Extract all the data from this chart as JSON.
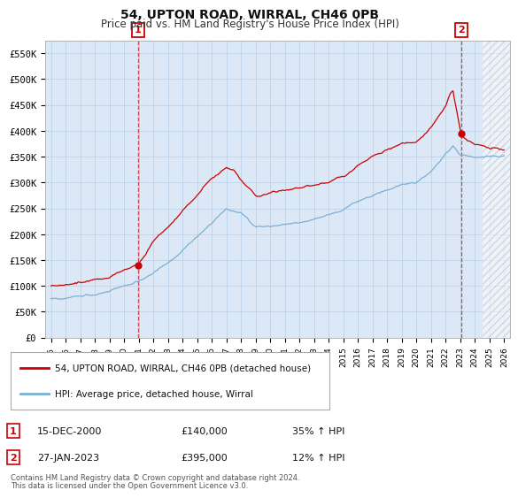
{
  "title": "54, UPTON ROAD, WIRRAL, CH46 0PB",
  "subtitle": "Price paid vs. HM Land Registry's House Price Index (HPI)",
  "ytick_values": [
    0,
    50000,
    100000,
    150000,
    200000,
    250000,
    300000,
    350000,
    400000,
    450000,
    500000,
    550000
  ],
  "ylabel_ticks": [
    "£0",
    "£50K",
    "£100K",
    "£150K",
    "£200K",
    "£250K",
    "£300K",
    "£350K",
    "£400K",
    "£450K",
    "£500K",
    "£550K"
  ],
  "ylim": [
    0,
    575000
  ],
  "xlim_start": 1994.6,
  "xlim_end": 2026.4,
  "legend_label_red": "54, UPTON ROAD, WIRRAL, CH46 0PB (detached house)",
  "legend_label_blue": "HPI: Average price, detached house, Wirral",
  "sale1_year": 2000.96,
  "sale1_price": 140000,
  "sale1_label": "1",
  "sale1_date": "15-DEC-2000",
  "sale1_display": "£140,000",
  "sale1_pct": "35% ↑ HPI",
  "sale2_year": 2023.07,
  "sale2_price": 395000,
  "sale2_label": "2",
  "sale2_date": "27-JAN-2023",
  "sale2_display": "£395,000",
  "sale2_pct": "12% ↑ HPI",
  "footnote1": "Contains HM Land Registry data © Crown copyright and database right 2024.",
  "footnote2": "This data is licensed under the Open Government Licence v3.0.",
  "red_color": "#cc0000",
  "blue_color": "#7bafd4",
  "bg_color": "#ffffff",
  "plot_bg_color": "#dce8f5",
  "grid_color": "#b8cfe8",
  "hatch_color": "#cccccc"
}
